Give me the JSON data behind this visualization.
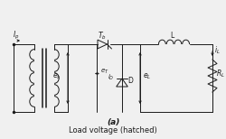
{
  "title": "(a)",
  "subtitle": "Load voltage (hatched)",
  "bg_color": "#f0f0f0",
  "line_color": "#1a1a1a",
  "fig_width": 2.5,
  "fig_height": 1.54,
  "dpi": 100,
  "title_fontsize": 6.5,
  "label_fontsize": 5.5
}
